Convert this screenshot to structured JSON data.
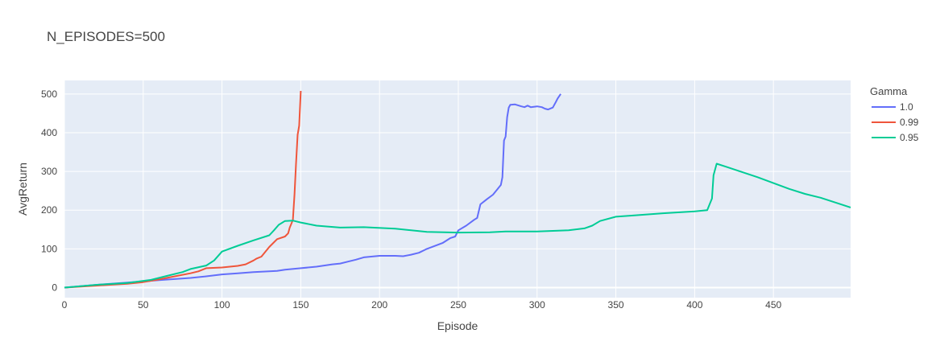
{
  "chart_data": {
    "type": "line",
    "title": "N_EPISODES=500",
    "xlabel": "Episode",
    "ylabel": "AvgReturn",
    "xlim": [
      0,
      499
    ],
    "ylim": [
      -26,
      535
    ],
    "xticks": [
      0,
      50,
      100,
      150,
      200,
      250,
      300,
      350,
      400,
      450
    ],
    "yticks": [
      0,
      100,
      200,
      300,
      400,
      500
    ],
    "grid": true,
    "legend": {
      "title": "Gamma",
      "placement": "right-top"
    },
    "colors": {
      "plot_bg": "#e5ecf6",
      "grid": "#ffffff",
      "text": "#444444"
    },
    "series": [
      {
        "name": "1.0",
        "color": "#636efa",
        "points": [
          [
            0,
            0
          ],
          [
            20,
            7
          ],
          [
            40,
            13
          ],
          [
            60,
            19
          ],
          [
            80,
            25
          ],
          [
            90,
            29
          ],
          [
            100,
            34
          ],
          [
            110,
            37
          ],
          [
            120,
            40
          ],
          [
            130,
            42
          ],
          [
            135,
            43
          ],
          [
            140,
            46
          ],
          [
            150,
            50
          ],
          [
            160,
            54
          ],
          [
            170,
            60
          ],
          [
            175,
            62
          ],
          [
            180,
            67
          ],
          [
            185,
            72
          ],
          [
            190,
            78
          ],
          [
            200,
            82
          ],
          [
            210,
            82
          ],
          [
            215,
            81
          ],
          [
            220,
            85
          ],
          [
            225,
            90
          ],
          [
            230,
            100
          ],
          [
            240,
            115
          ],
          [
            245,
            128
          ],
          [
            248,
            132
          ],
          [
            250,
            148
          ],
          [
            255,
            160
          ],
          [
            260,
            175
          ],
          [
            262,
            180
          ],
          [
            264,
            215
          ],
          [
            268,
            228
          ],
          [
            272,
            240
          ],
          [
            275,
            255
          ],
          [
            277,
            265
          ],
          [
            278,
            285
          ],
          [
            279,
            380
          ],
          [
            280,
            390
          ],
          [
            281,
            440
          ],
          [
            282,
            465
          ],
          [
            283,
            472
          ],
          [
            286,
            473
          ],
          [
            290,
            468
          ],
          [
            292,
            466
          ],
          [
            294,
            470
          ],
          [
            296,
            466
          ],
          [
            300,
            468
          ],
          [
            303,
            466
          ],
          [
            305,
            462
          ],
          [
            307,
            460
          ],
          [
            310,
            465
          ],
          [
            312,
            480
          ],
          [
            313,
            488
          ],
          [
            315,
            500
          ]
        ]
      },
      {
        "name": "0.99",
        "color": "#ef553b",
        "points": [
          [
            0,
            0
          ],
          [
            20,
            5
          ],
          [
            40,
            10
          ],
          [
            50,
            14
          ],
          [
            60,
            21
          ],
          [
            70,
            29
          ],
          [
            80,
            37
          ],
          [
            85,
            42
          ],
          [
            90,
            50
          ],
          [
            100,
            52
          ],
          [
            110,
            56
          ],
          [
            115,
            60
          ],
          [
            120,
            70
          ],
          [
            122,
            75
          ],
          [
            125,
            80
          ],
          [
            130,
            105
          ],
          [
            135,
            125
          ],
          [
            140,
            132
          ],
          [
            142,
            140
          ],
          [
            143,
            155
          ],
          [
            144,
            165
          ],
          [
            145,
            175
          ],
          [
            146,
            240
          ],
          [
            147,
            320
          ],
          [
            148,
            395
          ],
          [
            149,
            418
          ],
          [
            150,
            508
          ]
        ]
      },
      {
        "name": "0.95",
        "color": "#00cc96",
        "points": [
          [
            0,
            0
          ],
          [
            20,
            7
          ],
          [
            40,
            12
          ],
          [
            55,
            20
          ],
          [
            65,
            30
          ],
          [
            75,
            40
          ],
          [
            80,
            48
          ],
          [
            90,
            57
          ],
          [
            95,
            70
          ],
          [
            100,
            93
          ],
          [
            110,
            108
          ],
          [
            120,
            122
          ],
          [
            130,
            135
          ],
          [
            133,
            148
          ],
          [
            136,
            162
          ],
          [
            140,
            172
          ],
          [
            145,
            173
          ],
          [
            150,
            168
          ],
          [
            160,
            160
          ],
          [
            175,
            155
          ],
          [
            190,
            156
          ],
          [
            210,
            152
          ],
          [
            230,
            144
          ],
          [
            250,
            142
          ],
          [
            270,
            143
          ],
          [
            280,
            145
          ],
          [
            300,
            145
          ],
          [
            320,
            148
          ],
          [
            330,
            153
          ],
          [
            335,
            160
          ],
          [
            340,
            172
          ],
          [
            350,
            183
          ],
          [
            360,
            186
          ],
          [
            380,
            192
          ],
          [
            400,
            197
          ],
          [
            408,
            200
          ],
          [
            410,
            220
          ],
          [
            411,
            230
          ],
          [
            412,
            290
          ],
          [
            414,
            320
          ],
          [
            420,
            312
          ],
          [
            440,
            285
          ],
          [
            460,
            255
          ],
          [
            470,
            242
          ],
          [
            480,
            232
          ],
          [
            499,
            207
          ]
        ]
      }
    ]
  }
}
